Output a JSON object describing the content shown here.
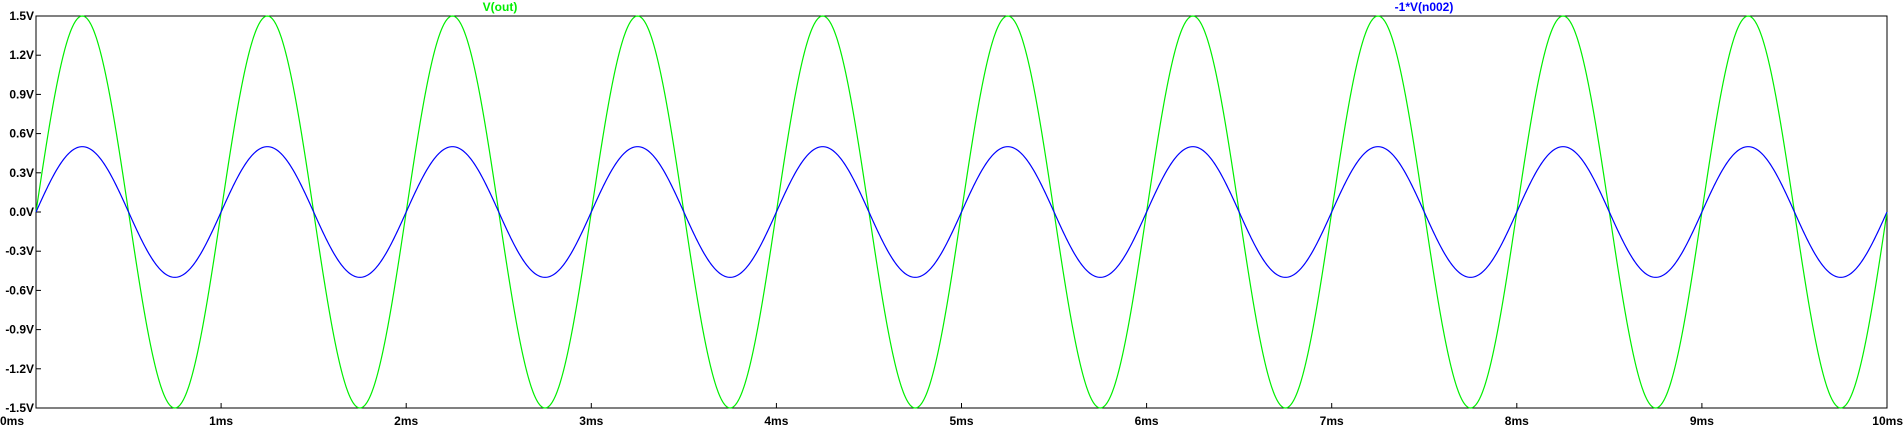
{
  "chart_data": {
    "type": "line",
    "title": "",
    "xlabel": "",
    "ylabel": "",
    "xlim": [
      0,
      10
    ],
    "ylim": [
      -1.5,
      1.5
    ],
    "x_unit": "ms",
    "grid": false,
    "x_ticks": [
      0,
      1,
      2,
      3,
      4,
      5,
      6,
      7,
      8,
      9,
      10
    ],
    "x_tick_labels": [
      "0ms",
      "1ms",
      "2ms",
      "3ms",
      "4ms",
      "5ms",
      "6ms",
      "7ms",
      "8ms",
      "9ms",
      "10ms"
    ],
    "y_ticks": [
      1.5,
      1.2,
      0.9,
      0.6,
      0.3,
      0.0,
      -0.3,
      -0.6,
      -0.9,
      -1.2,
      -1.5
    ],
    "y_tick_labels": [
      "1.5V",
      "1.2V",
      "0.9V",
      "0.6V",
      "0.3V",
      "0.0V",
      "-0.3V",
      "-0.6V",
      "-0.9V",
      "-1.2V",
      "-1.5V"
    ],
    "series": [
      {
        "name": "V(out)",
        "color": "#00ee00",
        "waveform": "sine",
        "amplitude": 1.5,
        "frequency_khz": 1,
        "phase_deg": 0
      },
      {
        "name": "-1*V(n002)",
        "color": "#0000ff",
        "waveform": "sine",
        "amplitude": 0.5,
        "frequency_khz": 1,
        "phase_deg": 0
      }
    ]
  }
}
